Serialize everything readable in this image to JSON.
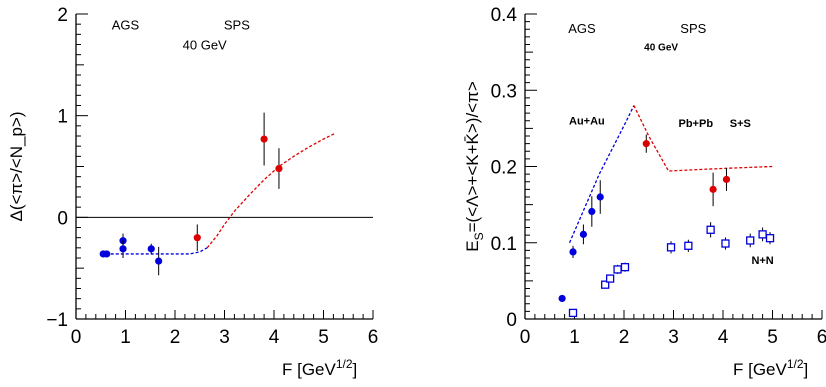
{
  "chart_data": [
    {
      "type": "scatter",
      "xlabel": "F [GeV^{1/2}]",
      "xlabel_main": "F [GeV",
      "xlabel_sup": "1/2",
      "xlabel_close": "]",
      "ylabel": "Δ(<π>/<N_p>)",
      "xlim": [
        0,
        6
      ],
      "ylim": [
        -1,
        2
      ],
      "xticks": [
        "0",
        "1",
        "2",
        "3",
        "4",
        "5",
        "6"
      ],
      "yticks": [
        "−1",
        "0",
        "1",
        "2"
      ],
      "annotations": [
        {
          "text": "AGS",
          "x": 1.0,
          "y": 1.85
        },
        {
          "text": "SPS",
          "x": 3.25,
          "y": 1.85
        },
        {
          "text": "40 GeV",
          "x": 2.6,
          "y": 1.65
        }
      ],
      "zero_line": 0,
      "series": [
        {
          "color": "#0000dd",
          "points": [
            {
              "x": 0.55,
              "y": -0.36,
              "err": 0.0
            },
            {
              "x": 0.62,
              "y": -0.36,
              "err": 0.0
            },
            {
              "x": 0.95,
              "y": -0.23,
              "err": 0.07
            },
            {
              "x": 0.95,
              "y": -0.31,
              "err": 0.09
            },
            {
              "x": 1.52,
              "y": -0.31,
              "err": 0.05
            },
            {
              "x": 1.67,
              "y": -0.43,
              "err": 0.14
            }
          ]
        },
        {
          "color": "#dd0000",
          "points": [
            {
              "x": 2.45,
              "y": -0.2,
              "err": 0.13
            },
            {
              "x": 3.8,
              "y": 0.77,
              "err": 0.26
            },
            {
              "x": 4.1,
              "y": 0.48,
              "err": 0.2
            }
          ]
        }
      ],
      "curves": [
        {
          "color": "#0000dd",
          "dash": true,
          "x": [
            0.5,
            1.0,
            1.5,
            2.0,
            2.3,
            2.5,
            2.65
          ],
          "y": [
            -0.36,
            -0.36,
            -0.36,
            -0.36,
            -0.36,
            -0.34,
            -0.3
          ]
        },
        {
          "color": "#dd0000",
          "dash": true,
          "x": [
            2.65,
            2.85,
            3.0,
            3.2,
            3.5,
            3.8,
            4.1,
            4.4,
            4.7,
            5.0,
            5.25
          ],
          "y": [
            -0.3,
            -0.18,
            -0.07,
            0.06,
            0.22,
            0.37,
            0.5,
            0.6,
            0.69,
            0.77,
            0.83
          ]
        }
      ]
    },
    {
      "type": "scatter",
      "xlabel": "F [GeV^{1/2}]",
      "xlabel_main": "F [GeV",
      "xlabel_sup": "1/2",
      "xlabel_close": "]",
      "ylabel": "E_S=(<Λ>+<K+K̄>)/<π>",
      "ylabel_prefix": "E",
      "ylabel_sub": "S",
      "ylabel_rest": "=(<Λ>+<K+K̄>)/<π>",
      "xlim": [
        0,
        6
      ],
      "ylim": [
        0,
        0.4
      ],
      "xticks": [
        "0",
        "1",
        "2",
        "3",
        "4",
        "5",
        "6"
      ],
      "yticks": [
        "0",
        "0.1",
        "0.2",
        "0.3",
        "0.4"
      ],
      "annotations": [
        {
          "text": "AGS",
          "x": 1.15,
          "y": 0.375,
          "size": "big"
        },
        {
          "text": "SPS",
          "x": 3.4,
          "y": 0.375,
          "size": "big"
        },
        {
          "text": "40 GeV",
          "x": 2.75,
          "y": 0.352,
          "size": "small"
        },
        {
          "text": "Au+Au",
          "x": 1.25,
          "y": 0.255,
          "size": "mid"
        },
        {
          "text": "Pb+Pb",
          "x": 3.45,
          "y": 0.252,
          "size": "mid"
        },
        {
          "text": "S+S",
          "x": 4.35,
          "y": 0.252,
          "size": "mid"
        },
        {
          "text": "N+N",
          "x": 4.8,
          "y": 0.072,
          "size": "mid"
        }
      ],
      "series": [
        {
          "name": "Au+Au",
          "color": "#0000dd",
          "marker": "filled",
          "points": [
            {
              "x": 0.75,
              "y": 0.027,
              "err": 0.0
            },
            {
              "x": 0.97,
              "y": 0.088,
              "err": 0.008
            },
            {
              "x": 1.18,
              "y": 0.111,
              "err": 0.013
            },
            {
              "x": 1.35,
              "y": 0.141,
              "err": 0.02
            },
            {
              "x": 1.52,
              "y": 0.16,
              "err": 0.022
            }
          ]
        },
        {
          "name": "Pb+Pb / S+S",
          "color": "#dd0000",
          "marker": "filled",
          "points": [
            {
              "x": 2.45,
              "y": 0.23,
              "err": 0.012
            },
            {
              "x": 3.8,
              "y": 0.17,
              "err": 0.022
            },
            {
              "x": 4.07,
              "y": 0.183,
              "err": 0.015
            }
          ]
        },
        {
          "name": "N+N",
          "color": "#0000dd",
          "marker": "open-square",
          "points": [
            {
              "x": 0.97,
              "y": 0.008,
              "err": 0.0
            },
            {
              "x": 1.62,
              "y": 0.045,
              "err": 0.005
            },
            {
              "x": 1.72,
              "y": 0.053,
              "err": 0.005
            },
            {
              "x": 1.87,
              "y": 0.065,
              "err": 0.006
            },
            {
              "x": 2.02,
              "y": 0.068,
              "err": 0.006
            },
            {
              "x": 2.95,
              "y": 0.094,
              "err": 0.008
            },
            {
              "x": 3.3,
              "y": 0.096,
              "err": 0.008
            },
            {
              "x": 3.75,
              "y": 0.117,
              "err": 0.01
            },
            {
              "x": 4.05,
              "y": 0.099,
              "err": 0.008
            },
            {
              "x": 4.55,
              "y": 0.103,
              "err": 0.009
            },
            {
              "x": 4.8,
              "y": 0.111,
              "err": 0.009
            },
            {
              "x": 4.95,
              "y": 0.106,
              "err": 0.008
            }
          ]
        }
      ],
      "curves": [
        {
          "color": "#0000dd",
          "dash": true,
          "x": [
            0.9,
            1.2,
            1.5,
            1.8,
            2.05,
            2.2
          ],
          "y": [
            0.1,
            0.145,
            0.19,
            0.228,
            0.26,
            0.28
          ]
        },
        {
          "color": "#dd0000",
          "dash": true,
          "x": [
            2.2,
            2.5,
            2.9,
            3.5,
            4.2,
            5.0
          ],
          "y": [
            0.28,
            0.24,
            0.194,
            0.196,
            0.198,
            0.2
          ]
        }
      ]
    }
  ]
}
